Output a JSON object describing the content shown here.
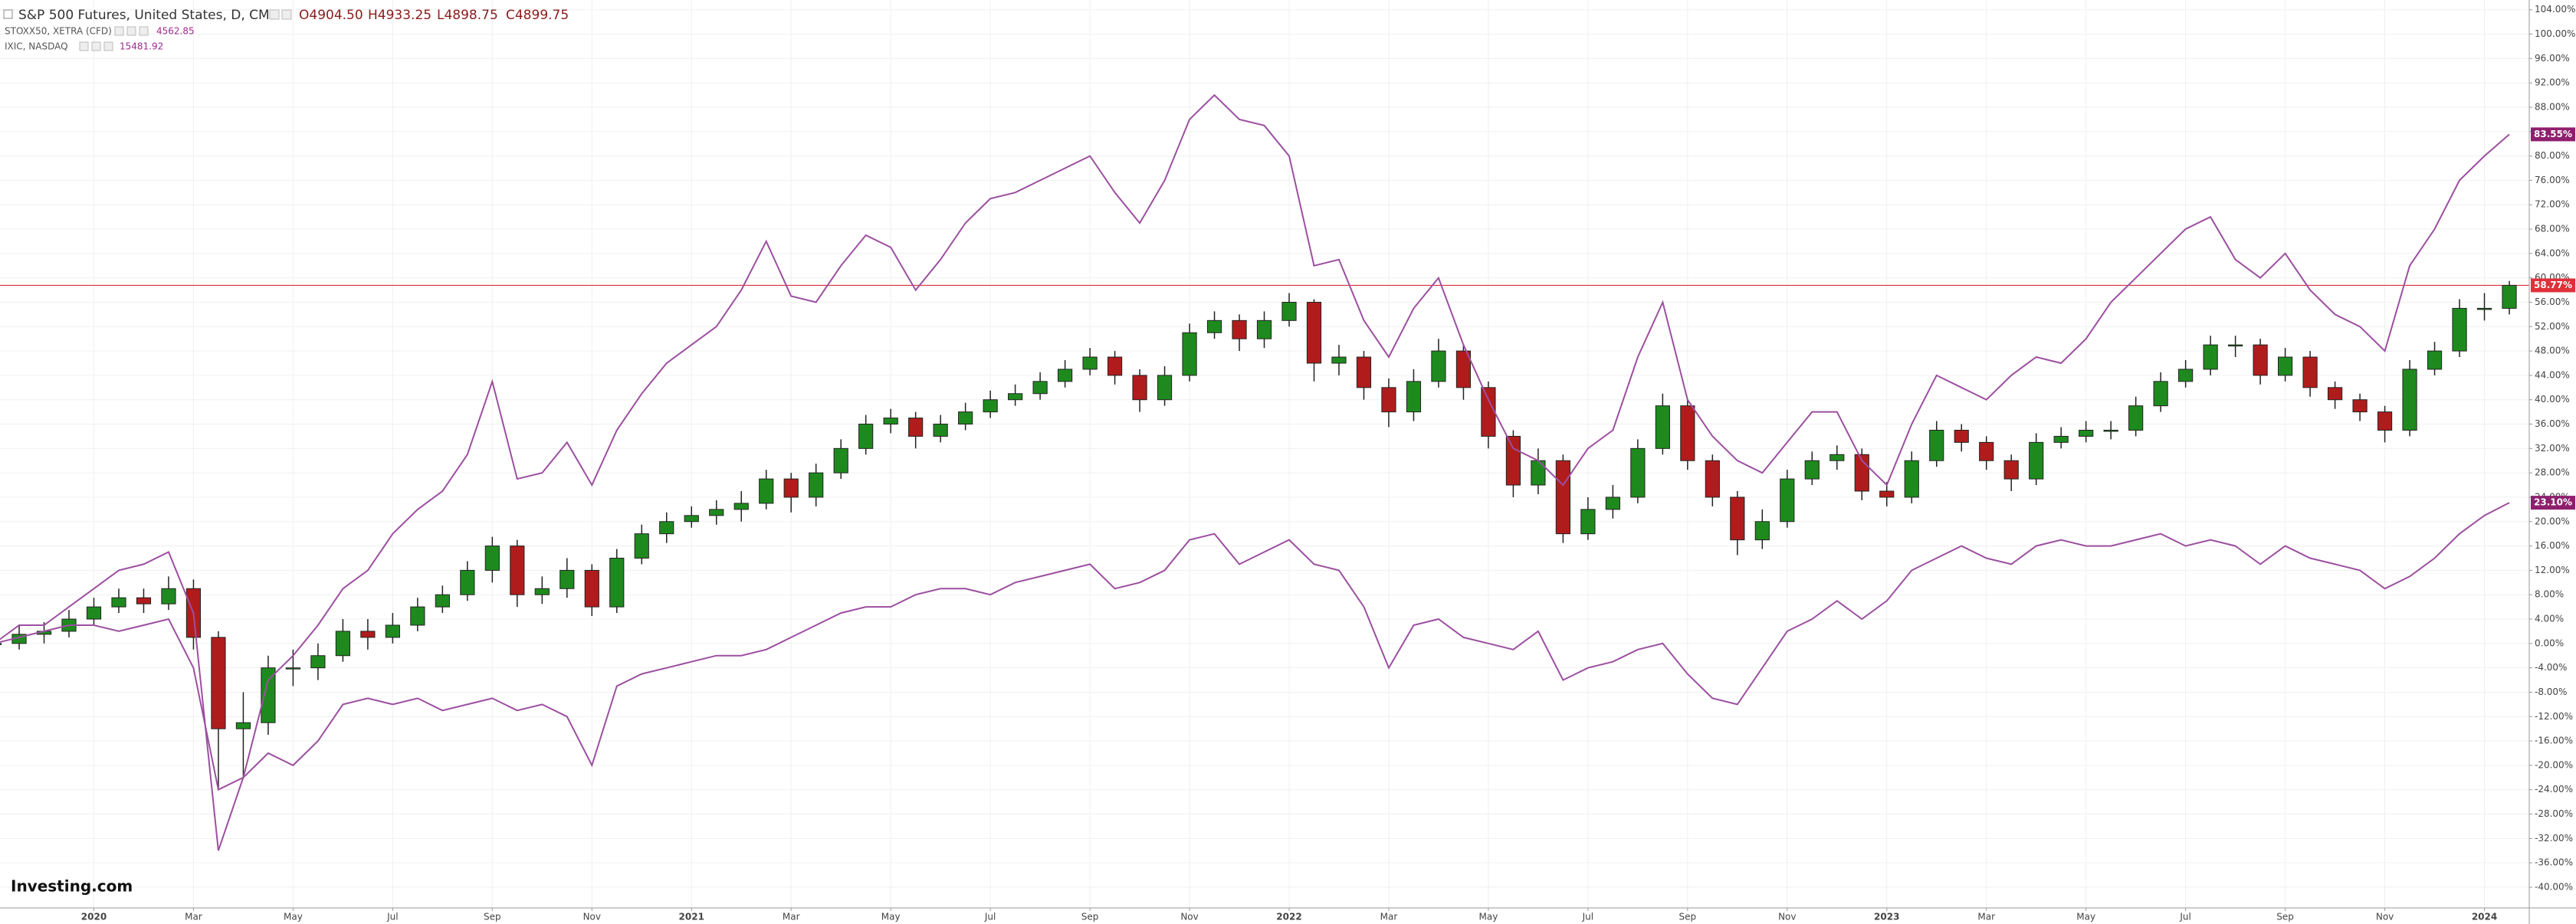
{
  "chart_data": {
    "type": "candlestick",
    "logo": "Investing.com",
    "xlim": [
      0.23,
      101.8
    ],
    "ylim": [
      -43.4,
      105.6
    ],
    "grid": true,
    "xticks": [
      {
        "value": 4,
        "label": "2020"
      },
      {
        "value": 8,
        "label": "Mar"
      },
      {
        "value": 12,
        "label": "May"
      },
      {
        "value": 16,
        "label": "Jul"
      },
      {
        "value": 20,
        "label": "Sep"
      },
      {
        "value": 24,
        "label": "Nov"
      },
      {
        "value": 28,
        "label": "2021"
      },
      {
        "value": 32,
        "label": "Mar"
      },
      {
        "value": 36,
        "label": "May"
      },
      {
        "value": 40,
        "label": "Jul"
      },
      {
        "value": 44,
        "label": "Sep"
      },
      {
        "value": 48,
        "label": "Nov"
      },
      {
        "value": 52,
        "label": "2022"
      },
      {
        "value": 56,
        "label": "Mar"
      },
      {
        "value": 60,
        "label": "May"
      },
      {
        "value": 64,
        "label": "Jul"
      },
      {
        "value": 68,
        "label": "Sep"
      },
      {
        "value": 72,
        "label": "Nov"
      },
      {
        "value": 76,
        "label": "2023"
      },
      {
        "value": 80,
        "label": "Mar"
      },
      {
        "value": 84,
        "label": "May"
      },
      {
        "value": 88,
        "label": "Jul"
      },
      {
        "value": 92,
        "label": "Sep"
      },
      {
        "value": 96,
        "label": "Nov"
      },
      {
        "value": 100,
        "label": "2024"
      }
    ],
    "yticks": [
      {
        "value": 104,
        "label": "104.00%"
      },
      {
        "value": 100,
        "label": "100.00%"
      },
      {
        "value": 96,
        "label": "96.00%"
      },
      {
        "value": 92,
        "label": "92.00%"
      },
      {
        "value": 88,
        "label": "88.00%"
      },
      {
        "value": 84,
        "label": "84.00%"
      },
      {
        "value": 80,
        "label": "80.00%"
      },
      {
        "value": 76,
        "label": "76.00%"
      },
      {
        "value": 72,
        "label": "72.00%"
      },
      {
        "value": 68,
        "label": "68.00%"
      },
      {
        "value": 64,
        "label": "64.00%"
      },
      {
        "value": 60,
        "label": "60.00%"
      },
      {
        "value": 56,
        "label": "56.00%"
      },
      {
        "value": 52,
        "label": "52.00%"
      },
      {
        "value": 48,
        "label": "48.00%"
      },
      {
        "value": 44,
        "label": "44.00%"
      },
      {
        "value": 40,
        "label": "40.00%"
      },
      {
        "value": 36,
        "label": "36.00%"
      },
      {
        "value": 32,
        "label": "32.00%"
      },
      {
        "value": 28,
        "label": "28.00%"
      },
      {
        "value": 24,
        "label": "24.00%"
      },
      {
        "value": 20,
        "label": "20.00%"
      },
      {
        "value": 16,
        "label": "16.00%"
      },
      {
        "value": 12,
        "label": "12.00%"
      },
      {
        "value": 8,
        "label": "8.00%"
      },
      {
        "value": 4,
        "label": "4.00%"
      },
      {
        "value": 0,
        "label": "0.00%"
      },
      {
        "value": -4,
        "label": "-4.00%"
      },
      {
        "value": -8,
        "label": "-8.00%"
      },
      {
        "value": -12,
        "label": "-12.00%"
      },
      {
        "value": -16,
        "label": "-16.00%"
      },
      {
        "value": -20,
        "label": "-20.00%"
      },
      {
        "value": -24,
        "label": "-24.00%"
      },
      {
        "value": -28,
        "label": "-28.00%"
      },
      {
        "value": -32,
        "label": "-32.00%"
      },
      {
        "value": -36,
        "label": "-36.00%"
      },
      {
        "value": -40,
        "label": "-40.00%"
      }
    ],
    "price_line": {
      "value": 58.77,
      "label": "58.77%",
      "color": "#e0303a"
    },
    "series": [
      {
        "name": "S&P 500 Futures, United States, D, CME",
        "type": "candlestick",
        "up_color": "#1e8a1e",
        "down_color": "#b01c1c",
        "quote": {
          "open": "O4904.50",
          "high": "H4933.25",
          "low": "L4898.75",
          "close": "C4899.75"
        },
        "ohlc": [
          [
            0,
            2,
            -1.5,
            0
          ],
          [
            0,
            3,
            -1,
            1.5
          ],
          [
            1.5,
            3.5,
            0,
            2
          ],
          [
            2,
            5.5,
            1,
            4
          ],
          [
            4,
            7.5,
            3,
            6
          ],
          [
            6,
            9,
            5,
            7.5
          ],
          [
            7.5,
            9,
            5,
            6.5
          ],
          [
            6.5,
            11,
            5.5,
            9
          ],
          [
            9,
            10.5,
            -1,
            1
          ],
          [
            1,
            2,
            -24,
            -14
          ],
          [
            -14,
            -8,
            -22,
            -13
          ],
          [
            -13,
            -2,
            -15,
            -4
          ],
          [
            -4,
            -1,
            -7,
            -4
          ],
          [
            -4,
            0,
            -6,
            -2
          ],
          [
            -2,
            4,
            -3,
            2
          ],
          [
            2,
            4,
            -1,
            1
          ],
          [
            1,
            5,
            0,
            3
          ],
          [
            3,
            7.5,
            2,
            6
          ],
          [
            6,
            9.5,
            5,
            8
          ],
          [
            8,
            13.5,
            7,
            12
          ],
          [
            12,
            17.5,
            10,
            16
          ],
          [
            16,
            17,
            6,
            8
          ],
          [
            8,
            11,
            6.5,
            9
          ],
          [
            9,
            14,
            7.5,
            12
          ],
          [
            12,
            13,
            4.5,
            6
          ],
          [
            6,
            15.5,
            5,
            14
          ],
          [
            14,
            19.5,
            13,
            18
          ],
          [
            18,
            21.5,
            16.5,
            20
          ],
          [
            20,
            22.5,
            19,
            21
          ],
          [
            21,
            23.5,
            19.5,
            22
          ],
          [
            22,
            25,
            20,
            23
          ],
          [
            23,
            28.5,
            22,
            27
          ],
          [
            27,
            28,
            21.5,
            24
          ],
          [
            24,
            29.5,
            22.5,
            28
          ],
          [
            28,
            33.5,
            27,
            32
          ],
          [
            32,
            37.5,
            31,
            36
          ],
          [
            36,
            38.5,
            34.5,
            37
          ],
          [
            37,
            38,
            32,
            34
          ],
          [
            34,
            37.5,
            33,
            36
          ],
          [
            36,
            39.5,
            35,
            38
          ],
          [
            38,
            41.5,
            37,
            40
          ],
          [
            40,
            42.5,
            39,
            41
          ],
          [
            41,
            44.5,
            40,
            43
          ],
          [
            43,
            46.5,
            42,
            45
          ],
          [
            45,
            48.5,
            44,
            47
          ],
          [
            47,
            48,
            42.5,
            44
          ],
          [
            44,
            45,
            38,
            40
          ],
          [
            40,
            45.5,
            39,
            44
          ],
          [
            44,
            52.5,
            43,
            51
          ],
          [
            51,
            54.5,
            50,
            53
          ],
          [
            53,
            54,
            48,
            50
          ],
          [
            50,
            54.5,
            48.5,
            53
          ],
          [
            53,
            57.5,
            52,
            56
          ],
          [
            56,
            56.5,
            43,
            46
          ],
          [
            46,
            49,
            44,
            47
          ],
          [
            47,
            48,
            40,
            42
          ],
          [
            42,
            43.5,
            35.5,
            38
          ],
          [
            38,
            45,
            36.5,
            43
          ],
          [
            43,
            50,
            42,
            48
          ],
          [
            48,
            49,
            40,
            42
          ],
          [
            42,
            43,
            32,
            34
          ],
          [
            34,
            35,
            24,
            26
          ],
          [
            26,
            32,
            24.5,
            30
          ],
          [
            30,
            31,
            16.5,
            18
          ],
          [
            18,
            24,
            17,
            22
          ],
          [
            22,
            26,
            20.5,
            24
          ],
          [
            24,
            33.5,
            23,
            32
          ],
          [
            32,
            41,
            31,
            39
          ],
          [
            39,
            40,
            28.5,
            30
          ],
          [
            30,
            31,
            22.5,
            24
          ],
          [
            24,
            25,
            14.5,
            17
          ],
          [
            17,
            22,
            15.5,
            20
          ],
          [
            20,
            28.5,
            19,
            27
          ],
          [
            27,
            31.5,
            26,
            30
          ],
          [
            30,
            32.5,
            28.5,
            31
          ],
          [
            31,
            32,
            23.5,
            25
          ],
          [
            25,
            26.5,
            22.5,
            24
          ],
          [
            24,
            31.5,
            23,
            30
          ],
          [
            30,
            36.5,
            29,
            35
          ],
          [
            35,
            36,
            31.5,
            33
          ],
          [
            33,
            34,
            28.5,
            30
          ],
          [
            30,
            31,
            25,
            27
          ],
          [
            27,
            34.5,
            26,
            33
          ],
          [
            33,
            35.5,
            32,
            34
          ],
          [
            34,
            36.5,
            33,
            35
          ],
          [
            35,
            36.5,
            33.5,
            35
          ],
          [
            35,
            40.5,
            34,
            39
          ],
          [
            39,
            44.5,
            38,
            43
          ],
          [
            43,
            46.5,
            42,
            45
          ],
          [
            45,
            50.5,
            44,
            49
          ],
          [
            49,
            50.5,
            47,
            49
          ],
          [
            49,
            50,
            42.5,
            44
          ],
          [
            44,
            48.5,
            43,
            47
          ],
          [
            47,
            48,
            40.5,
            42
          ],
          [
            42,
            43,
            38.5,
            40
          ],
          [
            40,
            41,
            36.5,
            38
          ],
          [
            38,
            39,
            33,
            35
          ],
          [
            35,
            46.5,
            34,
            45
          ],
          [
            45,
            49.5,
            44,
            48
          ],
          [
            48,
            56.5,
            47,
            55
          ],
          [
            55,
            57.5,
            53,
            55
          ],
          [
            55,
            59.5,
            54,
            58.77
          ]
        ]
      },
      {
        "name": "STOXX50, XETRA (CFD)",
        "type": "line",
        "color": "#9c4fa0",
        "quote": "4562.85",
        "last_label": "23.10%",
        "values": [
          0,
          1,
          2,
          3,
          3,
          2,
          3,
          4,
          -4,
          -24,
          -22,
          -18,
          -20,
          -16,
          -10,
          -9,
          -10,
          -9,
          -11,
          -10,
          -9,
          -11,
          -10,
          -12,
          -20,
          -7,
          -5,
          -4,
          -3,
          -2,
          -2,
          -1,
          1,
          3,
          5,
          6,
          6,
          8,
          9,
          9,
          8,
          10,
          11,
          12,
          13,
          9,
          10,
          12,
          17,
          18,
          13,
          15,
          17,
          13,
          12,
          6,
          -4,
          3,
          4,
          1,
          0,
          -1,
          2,
          -6,
          -4,
          -3,
          -1,
          0,
          -5,
          -9,
          -10,
          -4,
          2,
          4,
          7,
          4,
          7,
          12,
          14,
          16,
          14,
          13,
          16,
          17,
          16,
          16,
          17,
          18,
          16,
          17,
          16,
          13,
          16,
          14,
          13,
          12,
          9,
          11,
          14,
          18,
          21,
          23.1
        ]
      },
      {
        "name": "IXIC, NASDAQ",
        "type": "line",
        "color": "#9c4fa0",
        "quote": "15481.92",
        "last_label": "83.55%",
        "values": [
          0,
          3,
          3,
          6,
          9,
          12,
          13,
          15,
          5,
          -34,
          -22,
          -6,
          -2,
          3,
          9,
          12,
          18,
          22,
          25,
          31,
          43,
          27,
          28,
          33,
          26,
          35,
          41,
          46,
          49,
          52,
          58,
          66,
          57,
          56,
          62,
          67,
          65,
          58,
          63,
          69,
          73,
          74,
          76,
          78,
          80,
          74,
          69,
          76,
          86,
          90,
          86,
          85,
          80,
          62,
          63,
          53,
          47,
          55,
          60,
          49,
          40,
          32,
          30,
          26,
          32,
          35,
          47,
          56,
          40,
          34,
          30,
          28,
          33,
          38,
          38,
          30,
          26,
          36,
          44,
          42,
          40,
          44,
          47,
          46,
          50,
          56,
          60,
          64,
          68,
          70,
          63,
          60,
          64,
          58,
          54,
          52,
          48,
          62,
          68,
          76,
          80,
          83.55
        ]
      }
    ]
  }
}
